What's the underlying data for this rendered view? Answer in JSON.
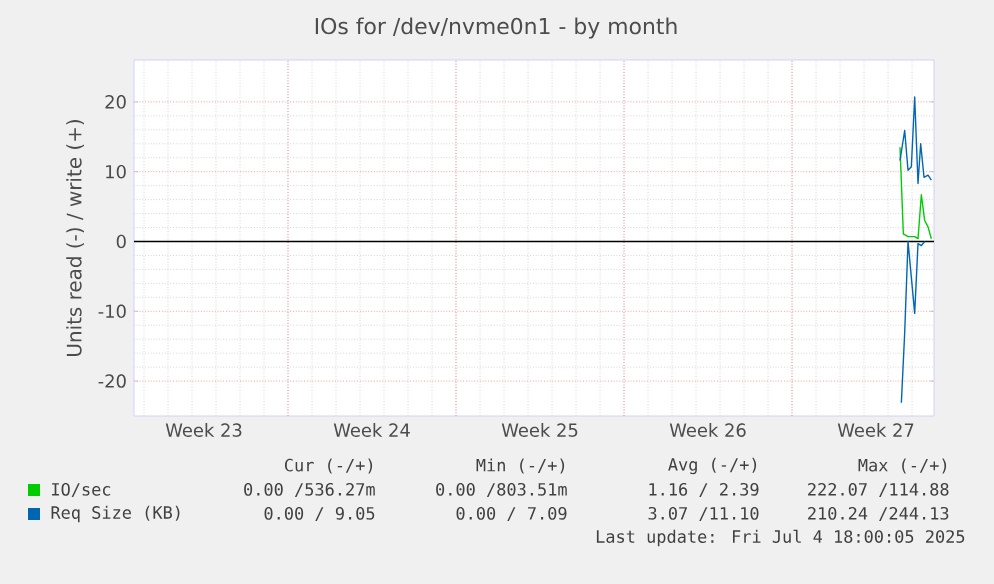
{
  "chart_data": {
    "type": "line",
    "title": "IOs for /dev/nvme0n1 - by month",
    "ylabel": "Units read (-) / write (+)",
    "xlim": [
      "2025-06-02T14:00",
      "2025-07-05T22:00"
    ],
    "ylim": [
      -25,
      26
    ],
    "xticks": [
      {
        "value": "2025-06-05T12:00",
        "label": "Week 23"
      },
      {
        "value": "2025-06-09",
        "label": null
      },
      {
        "value": "2025-06-12T12:00",
        "label": "Week 24"
      },
      {
        "value": "2025-06-16",
        "label": null
      },
      {
        "value": "2025-06-19T12:00",
        "label": "Week 25"
      },
      {
        "value": "2025-06-23",
        "label": null
      },
      {
        "value": "2025-06-26T12:00",
        "label": "Week 26"
      },
      {
        "value": "2025-06-30",
        "label": null
      },
      {
        "value": "2025-07-03T12:00",
        "label": "Week 27"
      }
    ],
    "yticks": [
      -20,
      -10,
      0,
      10,
      20
    ],
    "grid": true,
    "legend": "bottom left",
    "ref_lines": [
      {
        "axis": "y",
        "value": 0,
        "color": "#000000"
      }
    ],
    "series": [
      {
        "name": "IO/sec",
        "color": "#00cc00",
        "x": [
          "2025-07-04T12:00",
          "2025-07-04T15:20",
          "2025-07-04T20:00",
          "2025-07-05T02:40",
          "2025-07-05T06:00",
          "2025-07-05T09:20",
          "2025-07-05T12:40",
          "2025-07-05T16:00",
          "2025-07-05T19:20"
        ],
        "values": [
          13.5,
          1.1,
          0.7,
          0.7,
          0.4,
          6.7,
          3.0,
          2.1,
          0.4
        ]
      },
      {
        "name": "Req Size (KB)",
        "color": "#0066b3",
        "x": [
          "2025-07-04T12:00",
          "2025-07-04T16:40",
          "2025-07-04T20:00",
          "2025-07-04T23:20",
          "2025-07-05T02:40",
          "2025-07-05T06:00",
          "2025-07-05T08:40",
          "2025-07-05T12:00",
          "2025-07-05T16:00",
          "2025-07-05T19:20"
        ],
        "values": [
          11.6,
          15.9,
          10.2,
          10.7,
          20.7,
          8.3,
          14.0,
          9.2,
          9.5,
          8.8
        ]
      },
      {
        "color": "#0066b3",
        "x": [
          "2025-07-04T13:20",
          "2025-07-04T16:40",
          "2025-07-04T20:00",
          "2025-07-05T02:40",
          "2025-07-05T06:00",
          "2025-07-05T09:20",
          "2025-07-05T12:40"
        ],
        "values": [
          -23.1,
          -13.1,
          0,
          -10.3,
          -0.3,
          -0.6,
          0
        ]
      }
    ],
    "annotations": [
      "Cur (-/+)",
      "Min (-/+)",
      "Avg (-/+)",
      "Max (-/+)",
      "0.00 /536.27m",
      "0.00 /803.51m",
      "1.16 / 2.39",
      "222.07 /114.88",
      "0.00 / 9.05",
      "0.00 / 7.09",
      "3.07 /11.10",
      "210.24 /244.13",
      "Last update: Fri Jul 4 18:00:05 2025"
    ]
  }
}
